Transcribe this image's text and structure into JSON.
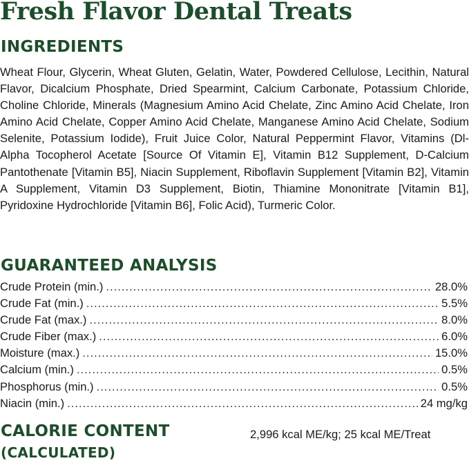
{
  "title": "Fresh Flavor Dental Treats",
  "ingredients": {
    "heading": "INGREDIENTS",
    "text": "Wheat Flour, Glycerin, Wheat Gluten, Gelatin, Water, Powdered Cellulose, Lecithin, Natural Flavor, Dicalcium Phosphate, Dried Spearmint, Calcium Carbonate, Potassium Chloride, Choline Chloride, Minerals (Magnesium Amino Acid Chelate, Zinc Amino Acid Chelate, Iron Amino Acid Chelate, Copper Amino Acid Chelate, Manganese Amino Acid Chelate, Sodium Selenite, Potassium Iodide), Fruit Juice Color, Natural Peppermint Flavor, Vitamins (Dl-Alpha Tocopherol Acetate [Source Of Vitamin E], Vitamin B12 Supplement, D-Calcium Pantothenate [Vitamin B5], Niacin Supplement, Riboflavin Supplement [Vitamin B2], Vitamin A Supplement, Vitamin D3 Supplement, Biotin, Thiamine Mononitrate [Vitamin B1], Pyridoxine Hydrochloride [Vitamin B6], Folic Acid), Turmeric Color."
  },
  "analysis": {
    "heading": "GUARANTEED ANALYSIS",
    "rows": [
      {
        "label": "Crude Protein (min.)",
        "value": "28.0%"
      },
      {
        "label": "Crude Fat (min.)",
        "value": "5.5%"
      },
      {
        "label": "Crude Fat (max.)",
        "value": "8.0%"
      },
      {
        "label": "Crude Fiber (max.)",
        "value": "6.0%"
      },
      {
        "label": "Moisture (max.)",
        "value": "15.0%"
      },
      {
        "label": "Calcium (min.)",
        "value": "0.5%"
      },
      {
        "label": "Phosphorus (min.)",
        "value": "0.5%"
      },
      {
        "label": "Niacin (min.)",
        "value": "24 mg/kg"
      }
    ]
  },
  "calorie": {
    "heading_line1": "CALORIE CONTENT",
    "heading_line2": "(CALCULATED)",
    "value": "2,996 kcal ME/kg; 25 kcal ME/Treat"
  },
  "colors": {
    "heading_green": "#1e4d2b",
    "text": "#1a1a1a"
  }
}
